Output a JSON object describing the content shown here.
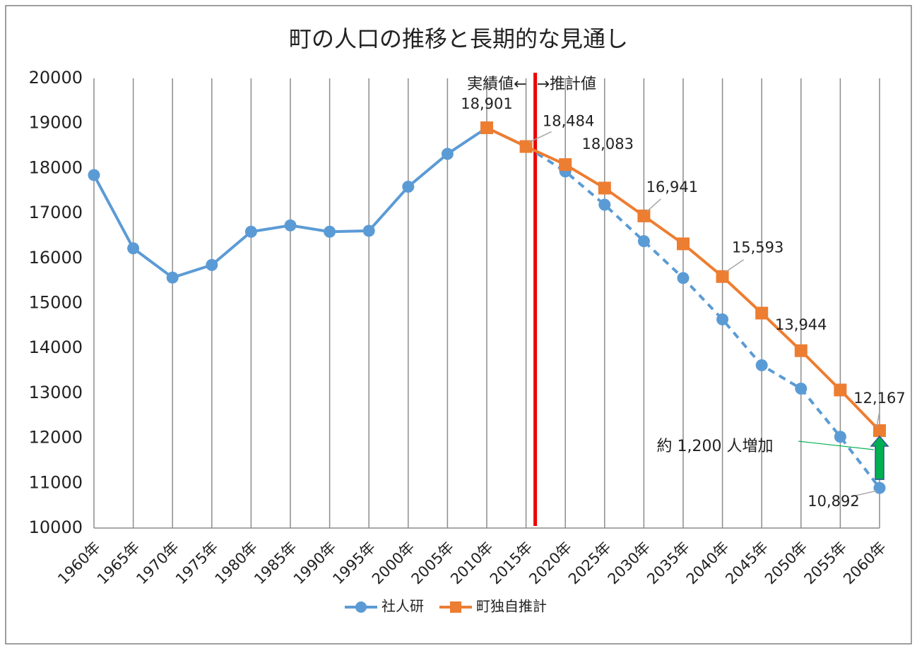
{
  "chart_data": {
    "type": "line",
    "title": "町の人口の推移と長期的な見通し",
    "categories": [
      "1960年",
      "1965年",
      "1970年",
      "1975年",
      "1980年",
      "1985年",
      "1990年",
      "1995年",
      "2000年",
      "2005年",
      "2010年",
      "2015年",
      "2020年",
      "2025年",
      "2030年",
      "2035年",
      "2040年",
      "2045年",
      "2050年",
      "2055年",
      "2060年"
    ],
    "series": [
      {
        "name": "社人研",
        "color": "#5b9bd5",
        "marker": "circle",
        "dashed_from_index": 11,
        "values": [
          17850,
          16220,
          15570,
          15850,
          16590,
          16730,
          16590,
          16610,
          17590,
          18320,
          18901,
          18484,
          17930,
          17190,
          16380,
          15560,
          14640,
          13620,
          13100,
          12030,
          10892
        ],
        "value_labels": [
          null,
          null,
          null,
          null,
          null,
          null,
          null,
          null,
          null,
          null,
          null,
          null,
          null,
          null,
          null,
          null,
          null,
          null,
          null,
          null,
          "10,892"
        ]
      },
      {
        "name": "町独自推計",
        "color": "#ed7d31",
        "marker": "square",
        "values": [
          null,
          null,
          null,
          null,
          null,
          null,
          null,
          null,
          null,
          null,
          18901,
          18484,
          18083,
          17560,
          16941,
          16320,
          15593,
          14780,
          13944,
          13070,
          12167
        ],
        "value_labels": [
          null,
          null,
          null,
          null,
          null,
          null,
          null,
          null,
          null,
          null,
          "18,901",
          "18,484",
          "18,083",
          null,
          "16,941",
          null,
          "15,593",
          null,
          "13,944",
          null,
          "12,167"
        ]
      }
    ],
    "ylim": [
      10000,
      20000
    ],
    "yticks": [
      10000,
      11000,
      12000,
      13000,
      14000,
      15000,
      16000,
      17000,
      18000,
      19000,
      20000
    ],
    "grid": "x",
    "legend": "bottom",
    "annotations": {
      "actual": "実績値←",
      "projected": "→推計値",
      "increase": "約 1,200 人増加"
    }
  }
}
